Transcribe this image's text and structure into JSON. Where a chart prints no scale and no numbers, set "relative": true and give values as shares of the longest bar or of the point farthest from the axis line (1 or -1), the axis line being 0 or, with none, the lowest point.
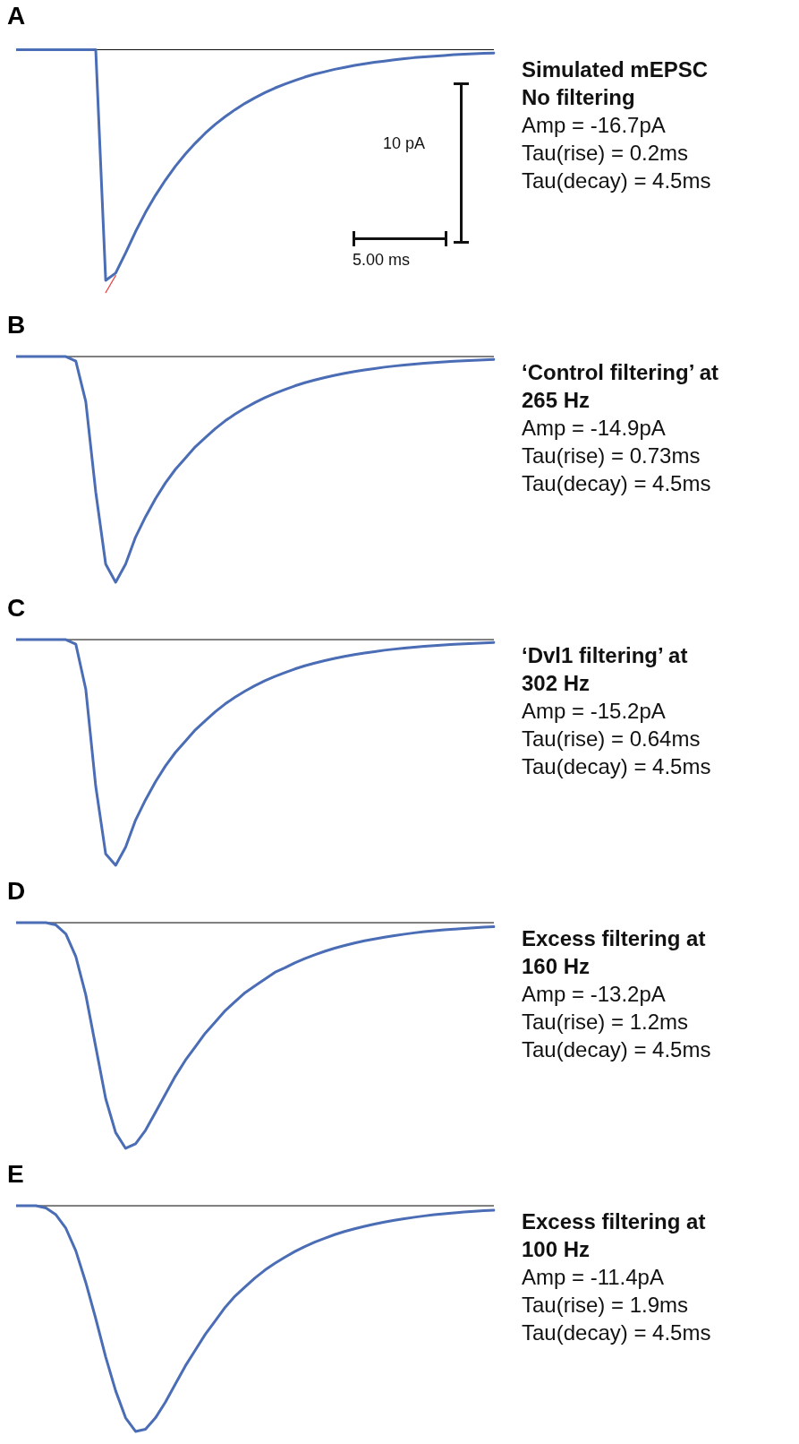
{
  "chart_data": [
    {
      "type": "line",
      "title": "A",
      "relative": true,
      "categories": [
        null,
        null,
        null,
        null,
        null,
        null,
        null,
        null,
        null,
        null,
        null,
        null,
        null,
        null,
        null,
        null,
        null,
        null,
        null,
        null,
        null,
        null,
        null,
        null,
        null,
        null,
        null,
        null,
        null,
        null,
        null,
        null,
        null,
        null,
        null,
        null,
        null,
        null,
        null,
        null,
        null,
        null,
        null,
        null,
        null,
        null,
        null,
        null,
        null
      ],
      "ref_lines": [
        {
          "axis": "y",
          "value": 0,
          "color": "#000000"
        }
      ],
      "annotations": [
        "10 pA",
        "5.00 ms",
        "Simulated mEPSC\nNo filtering",
        "Amp = -16.7pA",
        "Tau(rise) = 0.2ms",
        "Tau(decay) = 4.5ms"
      ],
      "tick_labels": false,
      "marker": "none",
      "series": [
        {
          "color": "#4a6db5",
          "values": [
            0,
            0,
            0,
            0,
            0,
            0,
            0,
            0,
            0,
            -0.95,
            -0.92,
            -0.837,
            -0.749,
            -0.67,
            -0.6,
            -0.537,
            -0.48,
            -0.43,
            -0.385,
            -0.344,
            -0.308,
            -0.276,
            -0.247,
            -0.221,
            -0.198,
            -0.177,
            -0.158,
            -0.142,
            -0.127,
            -0.113,
            -0.101,
            -0.091,
            -0.081,
            -0.073,
            -0.065,
            -0.058,
            -0.052,
            -0.047,
            -0.042,
            -0.037,
            -0.033,
            -0.03,
            -0.027,
            -0.024,
            -0.021,
            -0.019,
            -0.017,
            -0.015,
            -0.014
          ]
        },
        {
          "color": "#e8474a",
          "values": [
            null,
            null,
            null,
            null,
            null,
            null,
            null,
            null,
            null,
            -1.0,
            -0.93,
            null,
            null,
            null,
            null,
            null,
            null,
            null,
            null,
            null,
            null,
            null,
            null,
            null,
            null,
            null,
            null,
            null,
            null,
            null,
            null,
            null,
            null,
            null,
            null,
            null,
            null,
            null,
            null,
            null,
            null,
            null,
            null,
            null,
            null,
            null,
            null,
            null,
            null
          ]
        }
      ]
    },
    {
      "type": "line",
      "title": "B",
      "relative": true,
      "categories": [
        null,
        null,
        null,
        null,
        null,
        null,
        null,
        null,
        null,
        null,
        null,
        null,
        null,
        null,
        null,
        null,
        null,
        null,
        null,
        null,
        null,
        null,
        null,
        null,
        null,
        null,
        null,
        null,
        null,
        null,
        null,
        null,
        null,
        null,
        null,
        null,
        null,
        null,
        null,
        null,
        null,
        null,
        null,
        null,
        null,
        null,
        null,
        null,
        null
      ],
      "ref_lines": [
        {
          "axis": "y",
          "value": 0,
          "color": "#000000"
        }
      ],
      "annotations": [
        "‘Control filtering’ at\n265 Hz",
        "Amp = -14.9pA",
        "Tau(rise) = 0.73ms",
        "Tau(decay) = 4.5ms"
      ],
      "tick_labels": false,
      "marker": "none",
      "series": [
        {
          "color": "#4a6db5",
          "values": [
            0,
            0,
            0,
            0,
            0,
            0,
            -0.02,
            -0.2,
            -0.6,
            -0.92,
            -1.0,
            -0.92,
            -0.8,
            -0.71,
            -0.63,
            -0.56,
            -0.5,
            -0.45,
            -0.4,
            -0.36,
            -0.32,
            -0.285,
            -0.255,
            -0.228,
            -0.204,
            -0.182,
            -0.163,
            -0.146,
            -0.13,
            -0.116,
            -0.104,
            -0.093,
            -0.083,
            -0.074,
            -0.066,
            -0.059,
            -0.053,
            -0.047,
            -0.042,
            -0.038,
            -0.034,
            -0.03,
            -0.027,
            -0.024,
            -0.021,
            -0.019,
            -0.017,
            -0.015,
            -0.013
          ]
        }
      ]
    },
    {
      "type": "line",
      "title": "C",
      "relative": true,
      "categories": [
        null,
        null,
        null,
        null,
        null,
        null,
        null,
        null,
        null,
        null,
        null,
        null,
        null,
        null,
        null,
        null,
        null,
        null,
        null,
        null,
        null,
        null,
        null,
        null,
        null,
        null,
        null,
        null,
        null,
        null,
        null,
        null,
        null,
        null,
        null,
        null,
        null,
        null,
        null,
        null,
        null,
        null,
        null,
        null,
        null,
        null,
        null,
        null,
        null
      ],
      "ref_lines": [
        {
          "axis": "y",
          "value": 0,
          "color": "#000000"
        }
      ],
      "annotations": [
        "‘Dvl1 filtering’ at\n302 Hz",
        "Amp = -15.2pA",
        "Tau(rise) = 0.64ms",
        "Tau(decay) = 4.5ms"
      ],
      "tick_labels": false,
      "marker": "none",
      "series": [
        {
          "color": "#4a6db5",
          "values": [
            0,
            0,
            0,
            0,
            0,
            0,
            -0.02,
            -0.22,
            -0.65,
            -0.95,
            -1.0,
            -0.92,
            -0.8,
            -0.71,
            -0.63,
            -0.56,
            -0.5,
            -0.45,
            -0.4,
            -0.36,
            -0.32,
            -0.285,
            -0.255,
            -0.228,
            -0.204,
            -0.182,
            -0.163,
            -0.146,
            -0.13,
            -0.116,
            -0.104,
            -0.093,
            -0.083,
            -0.074,
            -0.066,
            -0.059,
            -0.053,
            -0.047,
            -0.042,
            -0.038,
            -0.034,
            -0.03,
            -0.027,
            -0.024,
            -0.021,
            -0.019,
            -0.017,
            -0.015,
            -0.013
          ]
        }
      ]
    },
    {
      "type": "line",
      "title": "D",
      "relative": true,
      "categories": [
        null,
        null,
        null,
        null,
        null,
        null,
        null,
        null,
        null,
        null,
        null,
        null,
        null,
        null,
        null,
        null,
        null,
        null,
        null,
        null,
        null,
        null,
        null,
        null,
        null,
        null,
        null,
        null,
        null,
        null,
        null,
        null,
        null,
        null,
        null,
        null,
        null,
        null,
        null,
        null,
        null,
        null,
        null,
        null,
        null,
        null,
        null,
        null,
        null
      ],
      "ref_lines": [
        {
          "axis": "y",
          "value": 0,
          "color": "#000000"
        }
      ],
      "annotations": [
        "Excess filtering at\n160 Hz",
        "Amp = -13.2pA",
        "Tau(rise) = 1.2ms",
        "Tau(decay) = 4.5ms"
      ],
      "tick_labels": false,
      "marker": "none",
      "series": [
        {
          "color": "#4a6db5",
          "values": [
            0,
            0,
            0,
            0,
            -0.01,
            -0.05,
            -0.15,
            -0.32,
            -0.55,
            -0.78,
            -0.93,
            -1.0,
            -0.98,
            -0.92,
            -0.84,
            -0.76,
            -0.68,
            -0.61,
            -0.55,
            -0.49,
            -0.44,
            -0.39,
            -0.35,
            -0.31,
            -0.28,
            -0.25,
            -0.22,
            -0.2,
            -0.178,
            -0.159,
            -0.142,
            -0.127,
            -0.113,
            -0.101,
            -0.09,
            -0.08,
            -0.072,
            -0.064,
            -0.057,
            -0.051,
            -0.045,
            -0.04,
            -0.036,
            -0.032,
            -0.029,
            -0.026,
            -0.023,
            -0.02,
            -0.018
          ]
        }
      ]
    },
    {
      "type": "line",
      "title": "E",
      "relative": true,
      "categories": [
        null,
        null,
        null,
        null,
        null,
        null,
        null,
        null,
        null,
        null,
        null,
        null,
        null,
        null,
        null,
        null,
        null,
        null,
        null,
        null,
        null,
        null,
        null,
        null,
        null,
        null,
        null,
        null,
        null,
        null,
        null,
        null,
        null,
        null,
        null,
        null,
        null,
        null,
        null,
        null,
        null,
        null,
        null,
        null,
        null,
        null,
        null,
        null,
        null
      ],
      "ref_lines": [
        {
          "axis": "y",
          "value": 0,
          "color": "#000000"
        }
      ],
      "annotations": [
        "Excess filtering at\n100 Hz",
        "Amp = -11.4pA",
        "Tau(rise) = 1.9ms",
        "Tau(decay) = 4.5ms"
      ],
      "tick_labels": false,
      "marker": "none",
      "series": [
        {
          "color": "#4a6db5",
          "values": [
            0,
            0,
            0,
            -0.01,
            -0.04,
            -0.1,
            -0.2,
            -0.34,
            -0.5,
            -0.67,
            -0.82,
            -0.94,
            -1.0,
            -0.99,
            -0.94,
            -0.87,
            -0.79,
            -0.71,
            -0.64,
            -0.57,
            -0.51,
            -0.45,
            -0.4,
            -0.36,
            -0.32,
            -0.285,
            -0.255,
            -0.228,
            -0.203,
            -0.181,
            -0.161,
            -0.144,
            -0.128,
            -0.114,
            -0.102,
            -0.091,
            -0.081,
            -0.072,
            -0.064,
            -0.057,
            -0.051,
            -0.045,
            -0.04,
            -0.036,
            -0.032,
            -0.028,
            -0.025,
            -0.022,
            -0.02
          ]
        }
      ]
    }
  ]
}
